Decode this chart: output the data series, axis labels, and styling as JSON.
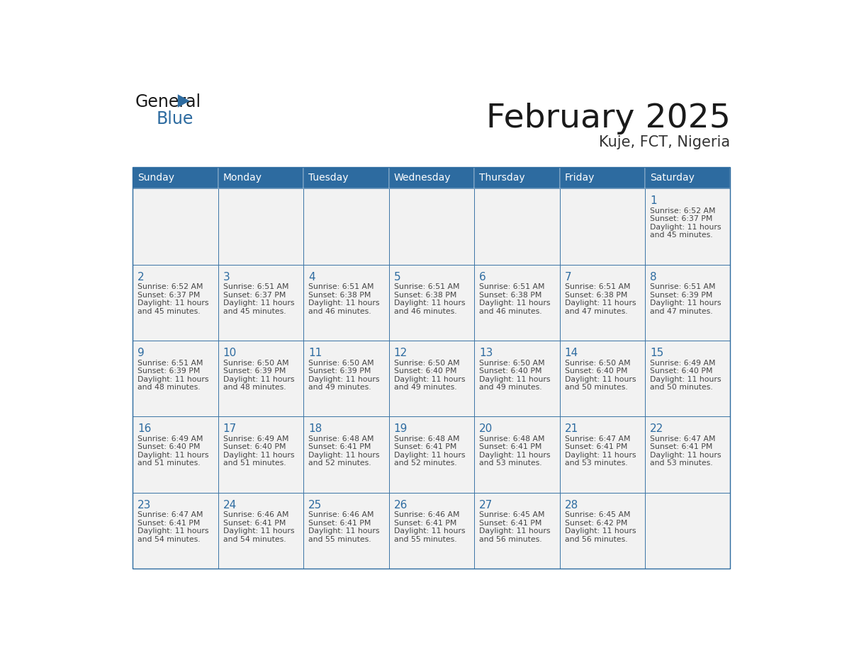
{
  "title": "February 2025",
  "subtitle": "Kuje, FCT, Nigeria",
  "days_of_week": [
    "Sunday",
    "Monday",
    "Tuesday",
    "Wednesday",
    "Thursday",
    "Friday",
    "Saturday"
  ],
  "header_bg": "#2D6BA0",
  "header_text": "#FFFFFF",
  "cell_bg_light": "#F2F2F2",
  "cell_bg_white": "#FFFFFF",
  "border_color": "#2D6BA0",
  "day_num_color": "#2D6BA0",
  "text_color": "#444444",
  "title_color": "#1a1a1a",
  "subtitle_color": "#333333",
  "logo_general_color": "#1a1a1a",
  "logo_blue_color": "#2D6BA0",
  "logo_triangle_color": "#2D6BA0",
  "calendar_data": [
    [
      null,
      null,
      null,
      null,
      null,
      null,
      {
        "day": 1,
        "sunrise": "6:52 AM",
        "sunset": "6:37 PM",
        "daylight": "11 hours and 45 minutes."
      }
    ],
    [
      {
        "day": 2,
        "sunrise": "6:52 AM",
        "sunset": "6:37 PM",
        "daylight": "11 hours and 45 minutes."
      },
      {
        "day": 3,
        "sunrise": "6:51 AM",
        "sunset": "6:37 PM",
        "daylight": "11 hours and 45 minutes."
      },
      {
        "day": 4,
        "sunrise": "6:51 AM",
        "sunset": "6:38 PM",
        "daylight": "11 hours and 46 minutes."
      },
      {
        "day": 5,
        "sunrise": "6:51 AM",
        "sunset": "6:38 PM",
        "daylight": "11 hours and 46 minutes."
      },
      {
        "day": 6,
        "sunrise": "6:51 AM",
        "sunset": "6:38 PM",
        "daylight": "11 hours and 46 minutes."
      },
      {
        "day": 7,
        "sunrise": "6:51 AM",
        "sunset": "6:38 PM",
        "daylight": "11 hours and 47 minutes."
      },
      {
        "day": 8,
        "sunrise": "6:51 AM",
        "sunset": "6:39 PM",
        "daylight": "11 hours and 47 minutes."
      }
    ],
    [
      {
        "day": 9,
        "sunrise": "6:51 AM",
        "sunset": "6:39 PM",
        "daylight": "11 hours and 48 minutes."
      },
      {
        "day": 10,
        "sunrise": "6:50 AM",
        "sunset": "6:39 PM",
        "daylight": "11 hours and 48 minutes."
      },
      {
        "day": 11,
        "sunrise": "6:50 AM",
        "sunset": "6:39 PM",
        "daylight": "11 hours and 49 minutes."
      },
      {
        "day": 12,
        "sunrise": "6:50 AM",
        "sunset": "6:40 PM",
        "daylight": "11 hours and 49 minutes."
      },
      {
        "day": 13,
        "sunrise": "6:50 AM",
        "sunset": "6:40 PM",
        "daylight": "11 hours and 49 minutes."
      },
      {
        "day": 14,
        "sunrise": "6:50 AM",
        "sunset": "6:40 PM",
        "daylight": "11 hours and 50 minutes."
      },
      {
        "day": 15,
        "sunrise": "6:49 AM",
        "sunset": "6:40 PM",
        "daylight": "11 hours and 50 minutes."
      }
    ],
    [
      {
        "day": 16,
        "sunrise": "6:49 AM",
        "sunset": "6:40 PM",
        "daylight": "11 hours and 51 minutes."
      },
      {
        "day": 17,
        "sunrise": "6:49 AM",
        "sunset": "6:40 PM",
        "daylight": "11 hours and 51 minutes."
      },
      {
        "day": 18,
        "sunrise": "6:48 AM",
        "sunset": "6:41 PM",
        "daylight": "11 hours and 52 minutes."
      },
      {
        "day": 19,
        "sunrise": "6:48 AM",
        "sunset": "6:41 PM",
        "daylight": "11 hours and 52 minutes."
      },
      {
        "day": 20,
        "sunrise": "6:48 AM",
        "sunset": "6:41 PM",
        "daylight": "11 hours and 53 minutes."
      },
      {
        "day": 21,
        "sunrise": "6:47 AM",
        "sunset": "6:41 PM",
        "daylight": "11 hours and 53 minutes."
      },
      {
        "day": 22,
        "sunrise": "6:47 AM",
        "sunset": "6:41 PM",
        "daylight": "11 hours and 53 minutes."
      }
    ],
    [
      {
        "day": 23,
        "sunrise": "6:47 AM",
        "sunset": "6:41 PM",
        "daylight": "11 hours and 54 minutes."
      },
      {
        "day": 24,
        "sunrise": "6:46 AM",
        "sunset": "6:41 PM",
        "daylight": "11 hours and 54 minutes."
      },
      {
        "day": 25,
        "sunrise": "6:46 AM",
        "sunset": "6:41 PM",
        "daylight": "11 hours and 55 minutes."
      },
      {
        "day": 26,
        "sunrise": "6:46 AM",
        "sunset": "6:41 PM",
        "daylight": "11 hours and 55 minutes."
      },
      {
        "day": 27,
        "sunrise": "6:45 AM",
        "sunset": "6:41 PM",
        "daylight": "11 hours and 56 minutes."
      },
      {
        "day": 28,
        "sunrise": "6:45 AM",
        "sunset": "6:42 PM",
        "daylight": "11 hours and 56 minutes."
      },
      null
    ]
  ]
}
